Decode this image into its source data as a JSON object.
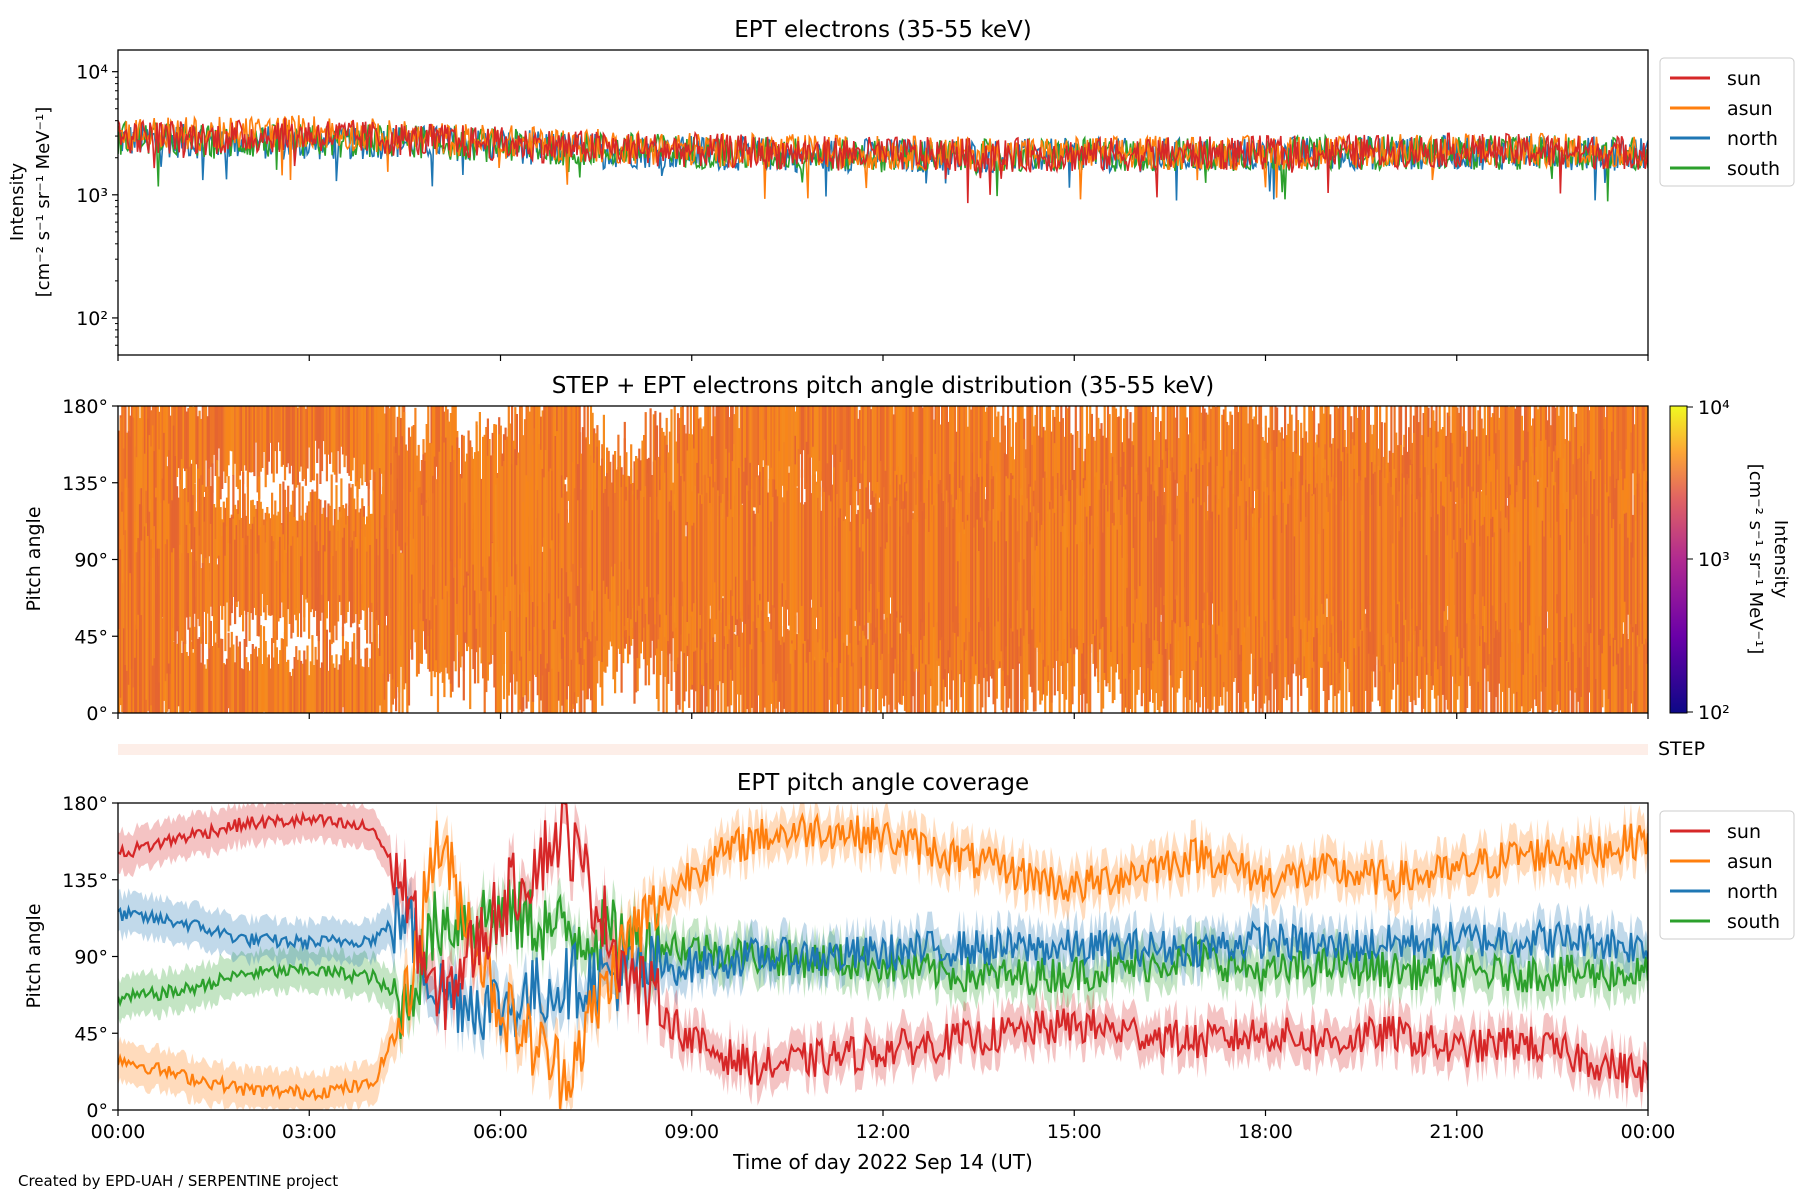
{
  "credit": "Created by EPD-UAH / SERPENTINE project",
  "colors": {
    "sun": "#d62728",
    "asun": "#ff7f0e",
    "north": "#1f77b4",
    "south": "#2ca02c"
  },
  "chart_data": [
    {
      "type": "line",
      "title": "EPT electrons (35-55 keV)",
      "ylabel_line1": "Intensity",
      "ylabel_line2": "[cm⁻² s⁻¹ sr⁻¹ MeV⁻¹]",
      "y_scale": "log",
      "ylim": [
        50,
        15000
      ],
      "yticks": [
        {
          "value": 100,
          "label": "10²"
        },
        {
          "value": 1000,
          "label": "10³"
        },
        {
          "value": 10000,
          "label": "10⁴"
        }
      ],
      "x_hours": [
        0,
        1.5,
        3,
        4.5,
        6,
        7.5,
        9,
        10.5,
        12,
        13.5,
        15,
        16.5,
        18,
        19.5,
        21,
        22.5,
        24
      ],
      "series": [
        {
          "name": "sun",
          "values": [
            3000,
            2900,
            3100,
            2800,
            2600,
            2400,
            2300,
            2200,
            2150,
            2100,
            2100,
            2150,
            2200,
            2250,
            2300,
            2250,
            2200
          ]
        },
        {
          "name": "asun",
          "values": [
            3200,
            3100,
            3300,
            2900,
            2700,
            2500,
            2350,
            2250,
            2200,
            2150,
            2150,
            2200,
            2200,
            2250,
            2300,
            2300,
            2250
          ]
        },
        {
          "name": "north",
          "values": [
            2800,
            2700,
            2600,
            2700,
            2500,
            2300,
            2200,
            2100,
            2100,
            2050,
            2100,
            2100,
            2150,
            2200,
            2200,
            2200,
            2150
          ]
        },
        {
          "name": "south",
          "values": [
            2900,
            2700,
            2700,
            2750,
            2500,
            2350,
            2250,
            2150,
            2100,
            2050,
            2100,
            2100,
            2150,
            2200,
            2200,
            2200,
            2150
          ]
        }
      ],
      "legend": [
        "sun",
        "asun",
        "north",
        "south"
      ],
      "legend_placement": "outside-right"
    },
    {
      "type": "heatmap",
      "title": "STEP + EPT electrons pitch angle distribution (35-55 keV)",
      "ylabel": "Pitch angle",
      "ylim": [
        0,
        180
      ],
      "yticks": [
        "0°",
        "45°",
        "90°",
        "135°",
        "180°"
      ],
      "colorbar": {
        "label_line1": "Intensity",
        "label_line2": "[cm⁻² s⁻¹ sr⁻¹ MeV⁻¹]",
        "range": [
          100,
          10000
        ],
        "ticks": [
          "10²",
          "10³",
          "10⁴"
        ],
        "colormap": "plasma"
      },
      "typical_intensity": 2500,
      "step_label": "STEP"
    },
    {
      "type": "line",
      "title": "EPT pitch angle coverage",
      "ylabel": "Pitch angle",
      "ylim": [
        0,
        180
      ],
      "yticks": [
        "0°",
        "45°",
        "90°",
        "135°",
        "180°"
      ],
      "x_hours": [
        0,
        1,
        2,
        3,
        4,
        4.5,
        5,
        6,
        7,
        8,
        9,
        10,
        11,
        12,
        13,
        14,
        15,
        16,
        17,
        18,
        19,
        20,
        21,
        22,
        23,
        24
      ],
      "series": [
        {
          "name": "sun",
          "values": [
            150,
            160,
            168,
            170,
            165,
            130,
            60,
            120,
            165,
            80,
            40,
            25,
            30,
            35,
            40,
            45,
            50,
            45,
            40,
            45,
            40,
            45,
            35,
            40,
            30,
            20
          ]
        },
        {
          "name": "asun",
          "values": [
            30,
            20,
            12,
            10,
            15,
            60,
            160,
            60,
            20,
            100,
            140,
            160,
            165,
            160,
            150,
            140,
            130,
            140,
            150,
            135,
            140,
            135,
            140,
            150,
            150,
            160
          ]
        },
        {
          "name": "north",
          "values": [
            115,
            110,
            100,
            98,
            100,
            115,
            70,
            60,
            75,
            80,
            85,
            90,
            90,
            92,
            95,
            95,
            95,
            95,
            95,
            100,
            95,
            98,
            100,
            100,
            100,
            95
          ]
        },
        {
          "name": "south",
          "values": [
            65,
            70,
            80,
            82,
            78,
            60,
            110,
            115,
            105,
            100,
            95,
            90,
            88,
            85,
            80,
            78,
            80,
            85,
            90,
            80,
            85,
            82,
            80,
            80,
            80,
            80
          ]
        }
      ],
      "legend": [
        "sun",
        "asun",
        "north",
        "south"
      ],
      "legend_placement": "outside-right"
    }
  ],
  "xaxis": {
    "label": "Time of day 2022 Sep 14 (UT)",
    "ticks": [
      "00:00",
      "03:00",
      "06:00",
      "09:00",
      "12:00",
      "15:00",
      "18:00",
      "21:00",
      "00:00"
    ],
    "range_hours": [
      0,
      24
    ]
  }
}
